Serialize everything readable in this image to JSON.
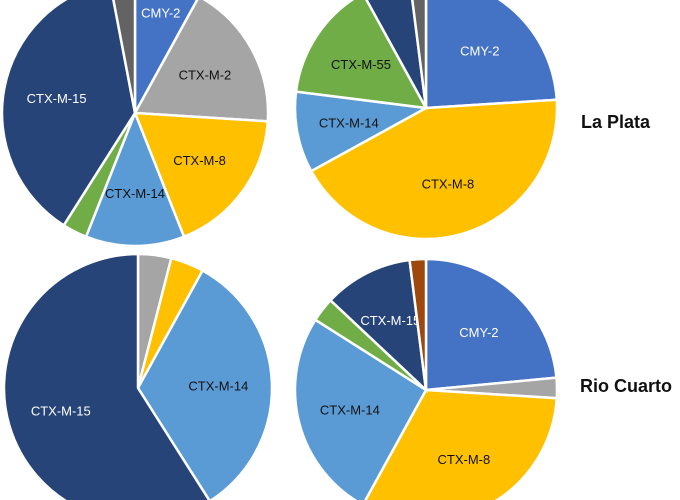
{
  "row_labels": [
    "La Plata",
    "Rio Cuarto"
  ],
  "chart_data": [
    {
      "type": "pie",
      "row": "La Plata",
      "start": "12 o'clock, clockwise",
      "slices": [
        {
          "label": "CMY-2",
          "value": 8,
          "color": "#4472C4"
        },
        {
          "label": "CTX-M-2",
          "value": 18,
          "color": "#A5A5A5"
        },
        {
          "label": "CTX-M-8",
          "value": 18,
          "color": "#FFC000"
        },
        {
          "label": "CTX-M-14",
          "value": 12,
          "color": "#5B9BD5"
        },
        {
          "label": "",
          "value": 3,
          "color": "#70AD47"
        },
        {
          "label": "CTX-M-15",
          "value": 38,
          "color": "#264478"
        },
        {
          "label": "",
          "value": 3,
          "color": "#636363"
        }
      ]
    },
    {
      "type": "pie",
      "row": "La Plata",
      "start": "12 o'clock, clockwise",
      "slices": [
        {
          "label": "CMY-2",
          "value": 24,
          "color": "#4472C4"
        },
        {
          "label": "CTX-M-8",
          "value": 43,
          "color": "#FFC000"
        },
        {
          "label": "CTX-M-14",
          "value": 10,
          "color": "#5B9BD5"
        },
        {
          "label": "CTX-M-55",
          "value": 15,
          "color": "#70AD47"
        },
        {
          "label": "",
          "value": 6,
          "color": "#264478"
        },
        {
          "label": "",
          "value": 2,
          "color": "#636363"
        }
      ]
    },
    {
      "type": "pie",
      "row": "Rio Cuarto",
      "start": "12 o'clock, clockwise",
      "slices": [
        {
          "label": "",
          "value": 4,
          "color": "#A5A5A5"
        },
        {
          "label": "",
          "value": 4,
          "color": "#FFC000"
        },
        {
          "label": "CTX-M-14",
          "value": 33,
          "color": "#5B9BD5"
        },
        {
          "label": "CTX-M-15",
          "value": 59,
          "color": "#264478"
        }
      ]
    },
    {
      "type": "pie",
      "row": "Rio Cuarto",
      "start": "12 o'clock, clockwise",
      "slices": [
        {
          "label": "CMY-2",
          "value": 23.5,
          "color": "#4472C4"
        },
        {
          "label": "",
          "value": 2.5,
          "color": "#A5A5A5"
        },
        {
          "label": "CTX-M-8",
          "value": 32,
          "color": "#FFC000"
        },
        {
          "label": "CTX-M-14",
          "value": 26,
          "color": "#5B9BD5"
        },
        {
          "label": "",
          "value": 3,
          "color": "#70AD47"
        },
        {
          "label": "CTX-M-15",
          "value": 11,
          "color": "#264478"
        },
        {
          "label": "",
          "value": 2,
          "color": "#9E480E"
        }
      ]
    }
  ]
}
